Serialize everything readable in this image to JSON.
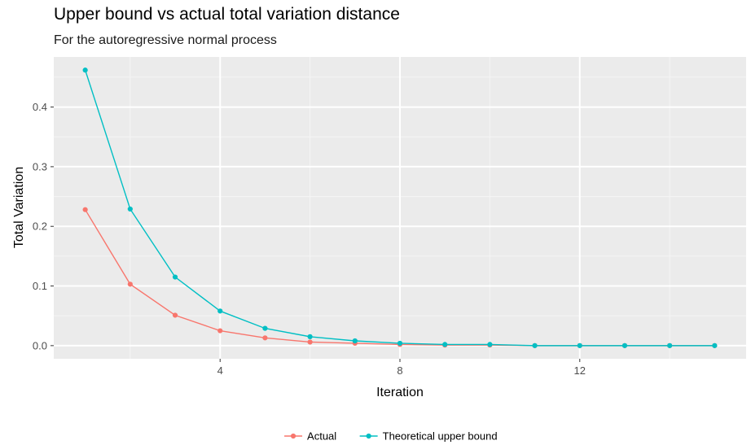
{
  "chart_data": {
    "type": "line",
    "title": "Upper bound vs actual total variation distance",
    "subtitle": "For the autoregressive normal process",
    "xlabel": "Iteration",
    "ylabel": "Total Variation",
    "xlim": [
      0.3,
      15.7
    ],
    "ylim": [
      -0.022,
      0.484
    ],
    "x_ticks": [
      4,
      8,
      12
    ],
    "y_ticks": [
      0.0,
      0.1,
      0.2,
      0.3,
      0.4
    ],
    "x_tick_labels": [
      "4",
      "8",
      "12"
    ],
    "y_tick_labels": [
      "0.0",
      "0.1",
      "0.2",
      "0.3",
      "0.4"
    ],
    "grid": true,
    "legend_position": "bottom",
    "series": [
      {
        "name": "Actual",
        "color": "#F8766D",
        "x": [
          1,
          2,
          3,
          4,
          5,
          6,
          7,
          8,
          9,
          10,
          11,
          12,
          13,
          14,
          15
        ],
        "y": [
          0.228,
          0.103,
          0.051,
          0.025,
          0.013,
          0.006,
          0.004,
          0.002,
          0.001,
          0.001,
          0.0,
          0.0,
          0.0,
          0.0,
          0.0
        ]
      },
      {
        "name": "Theoretical upper bound",
        "color": "#00BFC4",
        "x": [
          1,
          2,
          3,
          4,
          5,
          6,
          7,
          8,
          9,
          10,
          11,
          12,
          13,
          14,
          15
        ],
        "y": [
          0.462,
          0.229,
          0.115,
          0.058,
          0.029,
          0.015,
          0.008,
          0.004,
          0.002,
          0.002,
          0.0,
          0.0,
          0.0,
          0.0,
          0.0
        ]
      }
    ]
  }
}
